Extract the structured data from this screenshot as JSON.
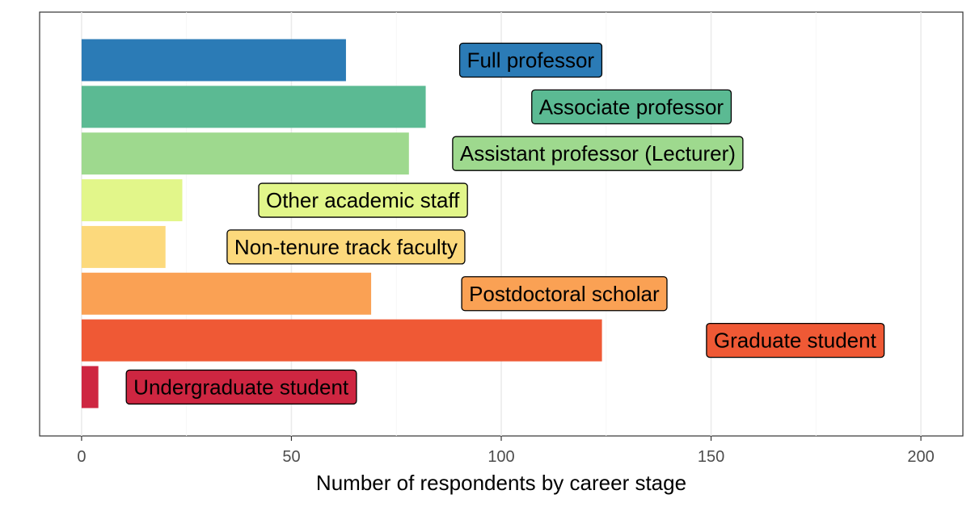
{
  "chart_data": {
    "type": "bar",
    "orientation": "horizontal",
    "xlabel": "Number of respondents by career stage",
    "ylabel": "",
    "xlim": [
      -10,
      210
    ],
    "xticks": [
      0,
      50,
      100,
      150,
      200
    ],
    "grid": true,
    "legend": "none",
    "categories": [
      "Full professor",
      "Associate professor",
      "Assistant professor (Lecturer)",
      "Other academic staff",
      "Non-tenure track faculty",
      "Postdoctoral scholar",
      "Graduate student",
      "Undergraduate student"
    ],
    "values": [
      63,
      82,
      78,
      24,
      20,
      69,
      124,
      4
    ],
    "label_x": [
      107,
      131,
      123,
      67,
      63,
      115,
      170,
      38
    ],
    "colors": [
      "#2B7BB6",
      "#5BBA93",
      "#9ED98E",
      "#E2F68A",
      "#FCD97C",
      "#FAA154",
      "#EF5935",
      "#CE2641"
    ]
  }
}
